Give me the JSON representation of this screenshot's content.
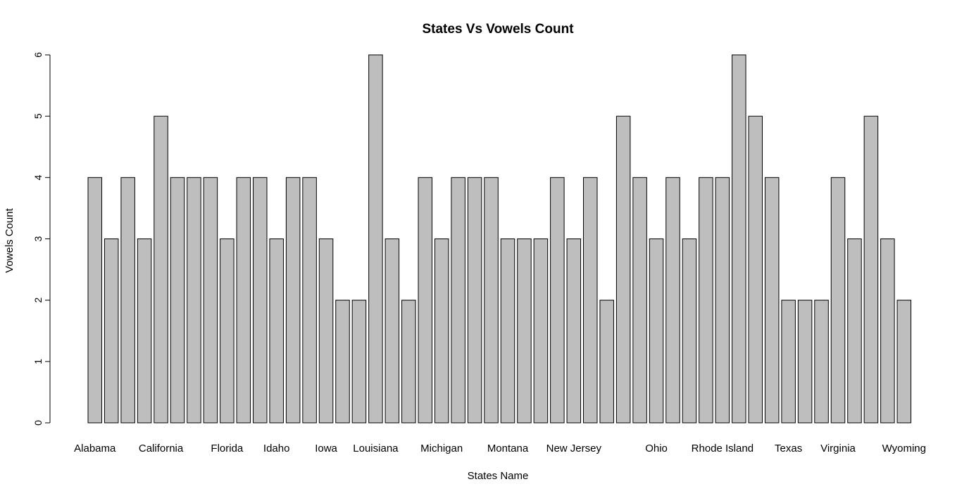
{
  "chart_data": {
    "type": "bar",
    "title": "States Vs Vowels Count",
    "xlabel": "States Name",
    "ylabel": "Vowels Count",
    "ylim": [
      0,
      6
    ],
    "yticks": [
      0,
      1,
      2,
      3,
      4,
      5,
      6
    ],
    "bar_color": "#bebebe",
    "categories": [
      "Alabama",
      "",
      "",
      "",
      "California",
      "",
      "",
      "",
      "Florida",
      "",
      "",
      "Idaho",
      "",
      "",
      "Iowa",
      "",
      "",
      "Louisiana",
      "",
      "",
      "",
      "Michigan",
      "",
      "",
      "",
      "Montana",
      "",
      "",
      "",
      "New Jersey",
      "",
      "",
      "",
      "",
      "Ohio",
      "",
      "",
      "",
      "Rhode Island",
      "",
      "",
      "",
      "Texas",
      "",
      "",
      "Virginia",
      "",
      "",
      "",
      "Wyoming"
    ],
    "values": [
      4,
      3,
      4,
      3,
      5,
      4,
      4,
      4,
      3,
      4,
      4,
      3,
      4,
      4,
      3,
      2,
      2,
      6,
      3,
      2,
      4,
      3,
      4,
      4,
      4,
      3,
      3,
      3,
      4,
      3,
      4,
      2,
      5,
      4,
      3,
      4,
      3,
      4,
      4,
      6,
      5,
      4,
      2,
      2,
      2,
      4,
      3,
      5,
      3,
      2
    ]
  }
}
